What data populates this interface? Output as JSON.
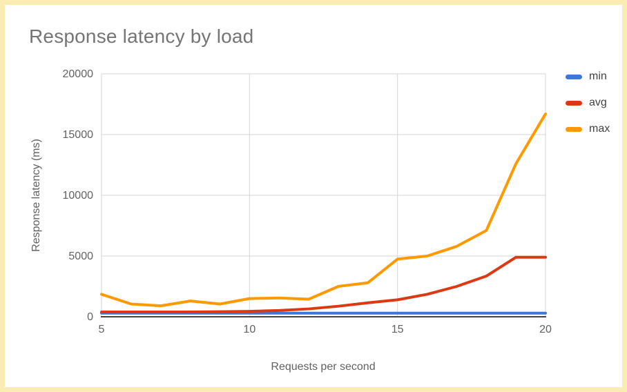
{
  "page": {
    "border_color": "#faecb3",
    "background_color": "#ffffff"
  },
  "chart_data": {
    "type": "line",
    "title": "Response latency by load",
    "xlabel": "Requests per second",
    "ylabel": "Response latency (ms)",
    "x": [
      5,
      6,
      7,
      8,
      9,
      10,
      11,
      12,
      13,
      14,
      15,
      16,
      17,
      18,
      19,
      20
    ],
    "series": [
      {
        "name": "min",
        "color": "#3c78d8",
        "values": [
          300,
          300,
          300,
          300,
          300,
          300,
          300,
          300,
          300,
          300,
          300,
          300,
          300,
          300,
          300,
          300
        ]
      },
      {
        "name": "avg",
        "color": "#dc3912",
        "values": [
          400,
          400,
          400,
          400,
          420,
          450,
          520,
          650,
          870,
          1150,
          1400,
          1850,
          2500,
          3350,
          4900,
          4900
        ]
      },
      {
        "name": "max",
        "color": "#ff9900",
        "values": [
          1850,
          1050,
          900,
          1300,
          1050,
          1500,
          1550,
          1450,
          2500,
          2800,
          4750,
          5000,
          5800,
          7100,
          12600,
          16700
        ]
      }
    ],
    "xlim": [
      5,
      20
    ],
    "ylim": [
      0,
      20000
    ],
    "xticks": [
      5,
      10,
      15,
      20
    ],
    "yticks": [
      0,
      5000,
      10000,
      15000,
      20000
    ],
    "grid": true,
    "legend_position": "right",
    "gridline_color": "#d6d6d6",
    "baseline_color": "#424242"
  }
}
